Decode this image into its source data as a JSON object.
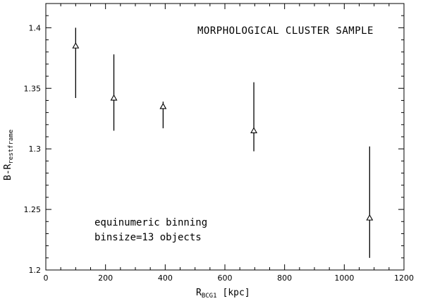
{
  "chart_data": {
    "type": "scatter",
    "title": "MORPHOLOGICAL CLUSTER SAMPLE",
    "xlabel": {
      "main": "R",
      "sub": "BCG1",
      "unit": "[kpc]"
    },
    "ylabel": {
      "main": "B-R",
      "sub": "restframe"
    },
    "xlim": [
      0,
      1200
    ],
    "ylim": [
      1.2,
      1.42
    ],
    "xticks": [
      0,
      200,
      400,
      600,
      800,
      1000,
      1200
    ],
    "yticks": [
      1.2,
      1.25,
      1.3,
      1.35,
      1.4
    ],
    "xtick_labels": [
      "0",
      "200",
      "400",
      "600",
      "800",
      "1000",
      "1200"
    ],
    "ytick_labels": [
      "1.2",
      "1.25",
      "1.3",
      "1.35",
      "1.4"
    ],
    "marker": "triangle",
    "grid": false,
    "points": [
      {
        "x": 100,
        "y": 1.385,
        "ylow": 1.342,
        "yhigh": 1.4
      },
      {
        "x": 228,
        "y": 1.342,
        "ylow": 1.315,
        "yhigh": 1.378
      },
      {
        "x": 393,
        "y": 1.335,
        "ylow": 1.317,
        "yhigh": 1.339
      },
      {
        "x": 697,
        "y": 1.315,
        "ylow": 1.298,
        "yhigh": 1.355
      },
      {
        "x": 1085,
        "y": 1.243,
        "ylow": 1.21,
        "yhigh": 1.302
      }
    ],
    "annotations": [
      "equinumeric binning",
      "binsize=13 objects"
    ]
  }
}
